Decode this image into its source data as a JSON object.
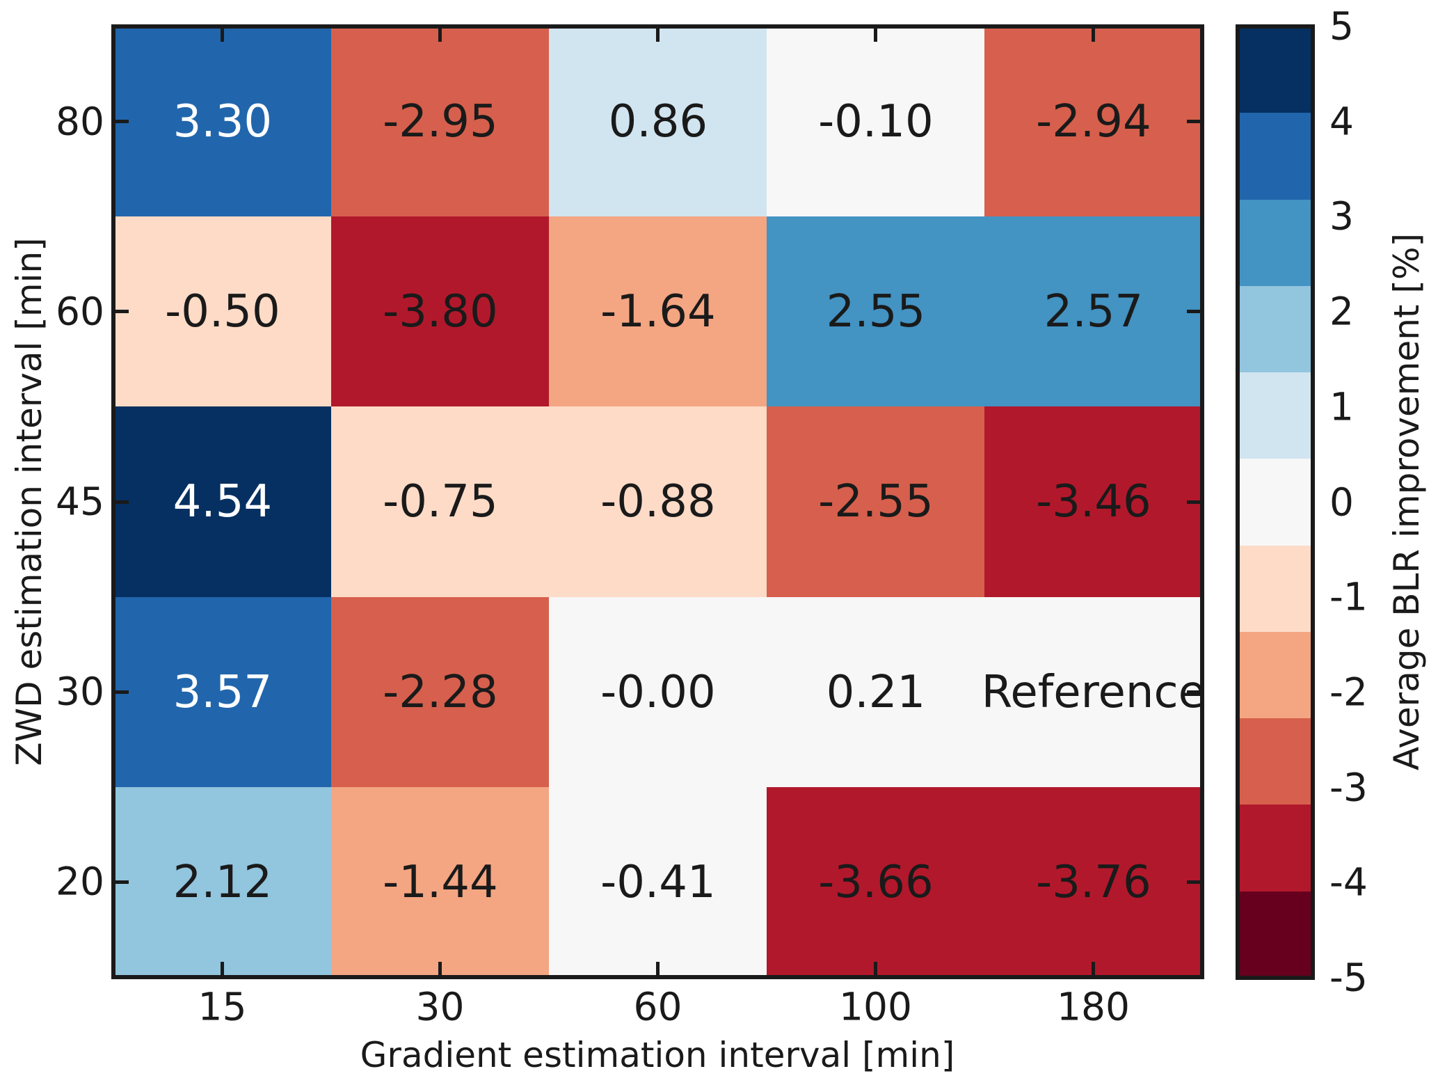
{
  "chart_data": {
    "type": "heatmap",
    "title": "",
    "xlabel": "Gradient estimation interval [min]",
    "ylabel": "ZWD estimation interval [min]",
    "x_categories": [
      "15",
      "30",
      "60",
      "100",
      "180"
    ],
    "y_categories": [
      "80",
      "60",
      "45",
      "30",
      "20"
    ],
    "values": [
      [
        3.3,
        -2.95,
        0.86,
        -0.1,
        -2.94
      ],
      [
        -0.5,
        -3.8,
        -1.64,
        2.55,
        2.57
      ],
      [
        4.54,
        -0.75,
        -0.88,
        -2.55,
        -3.46
      ],
      [
        3.57,
        -2.28,
        -0.0,
        0.21,
        null
      ],
      [
        2.12,
        -1.44,
        -0.41,
        -3.66,
        -3.76
      ]
    ],
    "cell_labels": [
      [
        "3.30",
        "-2.95",
        "0.86",
        "-0.10",
        "-2.94"
      ],
      [
        "-0.50",
        "-3.80",
        "-1.64",
        "2.55",
        "2.57"
      ],
      [
        "4.54",
        "-0.75",
        "-0.88",
        "-2.55",
        "-3.46"
      ],
      [
        "3.57",
        "-2.28",
        "-0.00",
        "0.21",
        "Reference"
      ],
      [
        "2.12",
        "-1.44",
        "-0.41",
        "-3.66",
        "-3.76"
      ]
    ],
    "reference_cell_value": 0,
    "colorbar": {
      "label": "Average BLR improvement [%]",
      "tick_labels": [
        "5",
        "4",
        "3",
        "2",
        "1",
        "0",
        "-1",
        "-2",
        "-3",
        "-4",
        "-5"
      ],
      "tick_values": [
        5,
        4,
        3,
        2,
        1,
        0,
        -1,
        -2,
        -3,
        -4,
        -5
      ],
      "vmin": -5,
      "vmax": 5,
      "n_bands": 11,
      "band_colors_top_to_bottom": [
        "#053061",
        "#2166ac",
        "#4393c3",
        "#92c5de",
        "#d1e5f0",
        "#f7f7f7",
        "#fddbc7",
        "#f4a582",
        "#d6604d",
        "#b2182b",
        "#67001f"
      ]
    },
    "style": {
      "text_color": "#1a1a1a",
      "light_text_color": "#ffffff",
      "background": "#ffffff",
      "white_text_band_count_from_top": 2,
      "grid": false,
      "legend_position": "right-colorbar"
    }
  }
}
